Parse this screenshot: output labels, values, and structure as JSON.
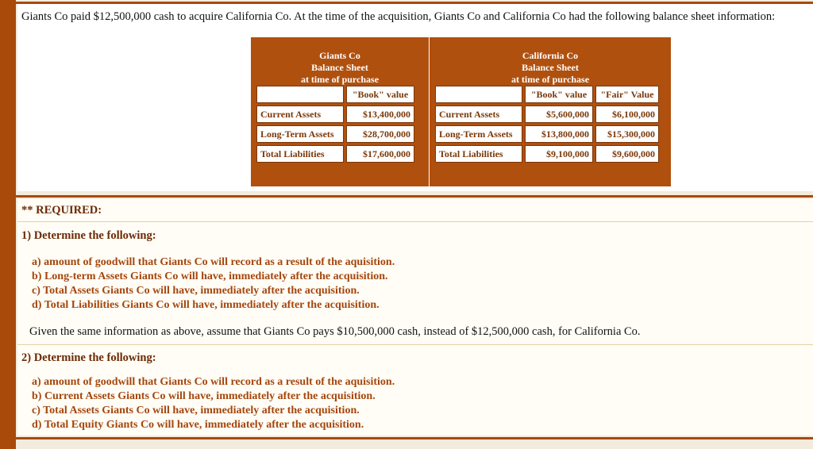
{
  "intro": "Giants Co paid $12,500,000 cash to acquire California Co. At the time of the acquisition, Giants Co and California Co had the following balance sheet information:",
  "giants": {
    "title1": "Giants Co",
    "title2": "Balance Sheet",
    "title3": "at time of purchase",
    "col_book": "\"Book\" value",
    "rows": [
      {
        "label": "Current Assets",
        "book": "$13,400,000"
      },
      {
        "label": "Long-Term Assets",
        "book": "$28,700,000"
      },
      {
        "label": "Total Liabilities",
        "book": "$17,600,000"
      }
    ]
  },
  "california": {
    "title1": "California Co",
    "title2": "Balance Sheet",
    "title3": "at time of purchase",
    "col_book": "\"Book\" value",
    "col_fair": "\"Fair\" Value",
    "rows": [
      {
        "label": "Current Assets",
        "book": "$5,600,000",
        "fair": "$6,100,000"
      },
      {
        "label": "Long-Term Assets",
        "book": "$13,800,000",
        "fair": "$15,300,000"
      },
      {
        "label": "Total Liabilities",
        "book": "$9,100,000",
        "fair": "$9,600,000"
      }
    ]
  },
  "required": {
    "heading": "** REQUIRED:",
    "part1_heading": "1) Determine the following:",
    "part1_items": [
      "a) amount of goodwill that Giants Co will record as a result of the aquisition.",
      "b) Long-term Assets Giants Co will have, immediately after the acquisition.",
      "c) Total Assets Giants Co will have, immediately after the acquisition.",
      "d) Total Liabilities Giants Co will have, immediately after the acquisition."
    ],
    "given_text": "Given the same information as above, assume that Giants Co pays $10,500,000 cash, instead of $12,500,000 cash, for California Co.",
    "part2_heading": "2) Determine the following:",
    "part2_items": [
      "a) amount of goodwill that Giants Co will record as a result of the aquisition.",
      "b) Current Assets Giants Co will have, immediately after the acquisition.",
      "c) Total Assets Giants Co will have, immediately after the acquisition.",
      "d) Total Equity Giants Co will have, immediately after the acquisition."
    ]
  },
  "colors": {
    "accent": "#a94a0a",
    "text_brown": "#a5460d",
    "background": "#f3ecdd"
  }
}
